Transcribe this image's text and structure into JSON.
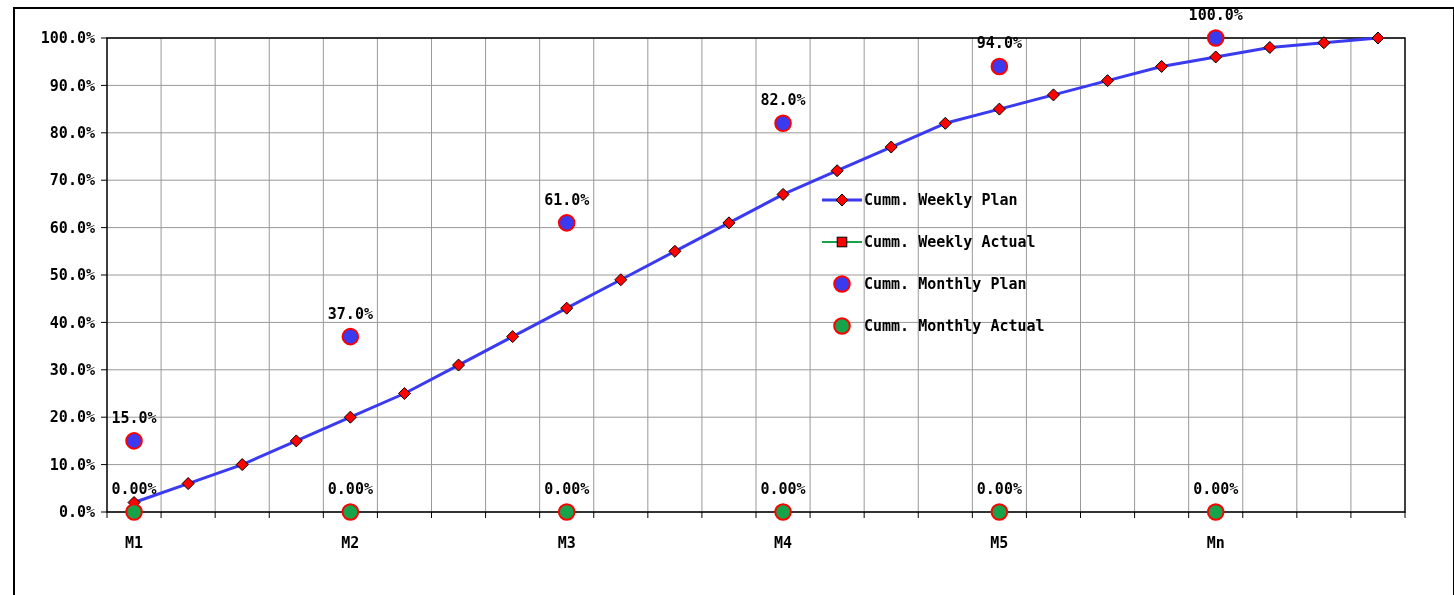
{
  "chart_data": {
    "type": "line",
    "categories": [
      "M1",
      null,
      null,
      null,
      "M2",
      null,
      null,
      null,
      "M3",
      null,
      null,
      null,
      "M4",
      null,
      null,
      null,
      "M5",
      null,
      null,
      null,
      "Mn",
      null,
      null,
      null
    ],
    "ylim": [
      0,
      100
    ],
    "yticks": [
      {
        "value": 0,
        "label": "0.0%"
      },
      {
        "value": 10,
        "label": "10.0%"
      },
      {
        "value": 20,
        "label": "20.0%"
      },
      {
        "value": 30,
        "label": "30.0%"
      },
      {
        "value": 40,
        "label": "40.0%"
      },
      {
        "value": 50,
        "label": "50.0%"
      },
      {
        "value": 60,
        "label": "60.0%"
      },
      {
        "value": 70,
        "label": "70.0%"
      },
      {
        "value": 80,
        "label": "80.0%"
      },
      {
        "value": 90,
        "label": "90.0%"
      },
      {
        "value": 100,
        "label": "100.0%"
      }
    ],
    "grid": true,
    "legend": "right",
    "line_style": "solid",
    "series": [
      {
        "name": "Cumm. Weekly Plan",
        "marker": "diamond",
        "color": "#3a3af0",
        "values": [
          2,
          6,
          10,
          15,
          20,
          25,
          31,
          37,
          43,
          49,
          55,
          61,
          67,
          72,
          77,
          82,
          85,
          88,
          91,
          94,
          96,
          98,
          99,
          100
        ]
      },
      {
        "name": "Cumm. Weekly Actual",
        "marker": "square",
        "color": "#16a34a",
        "values": [
          null,
          null,
          null,
          null,
          null,
          null,
          null,
          null,
          null,
          null,
          null,
          null,
          null,
          null,
          null,
          null,
          null,
          null,
          null,
          null,
          null,
          null,
          null,
          null
        ]
      },
      {
        "name": "Cumm. Monthly Plan",
        "type": "scatter",
        "marker": "circle",
        "color": "#3a3af0",
        "values": [
          15,
          null,
          null,
          null,
          37,
          null,
          null,
          null,
          61,
          null,
          null,
          null,
          82,
          null,
          null,
          null,
          94,
          null,
          null,
          null,
          100,
          null,
          null,
          null
        ],
        "value_labels": [
          "15.0%",
          null,
          null,
          null,
          "37.0%",
          null,
          null,
          null,
          "61.0%",
          null,
          null,
          null,
          "82.0%",
          null,
          null,
          null,
          "94.0%",
          null,
          null,
          null,
          "100.0%",
          null,
          null,
          null
        ]
      },
      {
        "name": "Cumm. Monthly Actual",
        "type": "scatter",
        "marker": "circle",
        "color": "#16a34a",
        "values": [
          0,
          null,
          null,
          null,
          0,
          null,
          null,
          null,
          0,
          null,
          null,
          null,
          0,
          null,
          null,
          null,
          0,
          null,
          null,
          null,
          0,
          null,
          null,
          null
        ],
        "value_labels": [
          "0.00%",
          null,
          null,
          null,
          "0.00%",
          null,
          null,
          null,
          "0.00%",
          null,
          null,
          null,
          "0.00%",
          null,
          null,
          null,
          "0.00%",
          null,
          null,
          null,
          "0.00%",
          null,
          null,
          null
        ]
      }
    ]
  }
}
